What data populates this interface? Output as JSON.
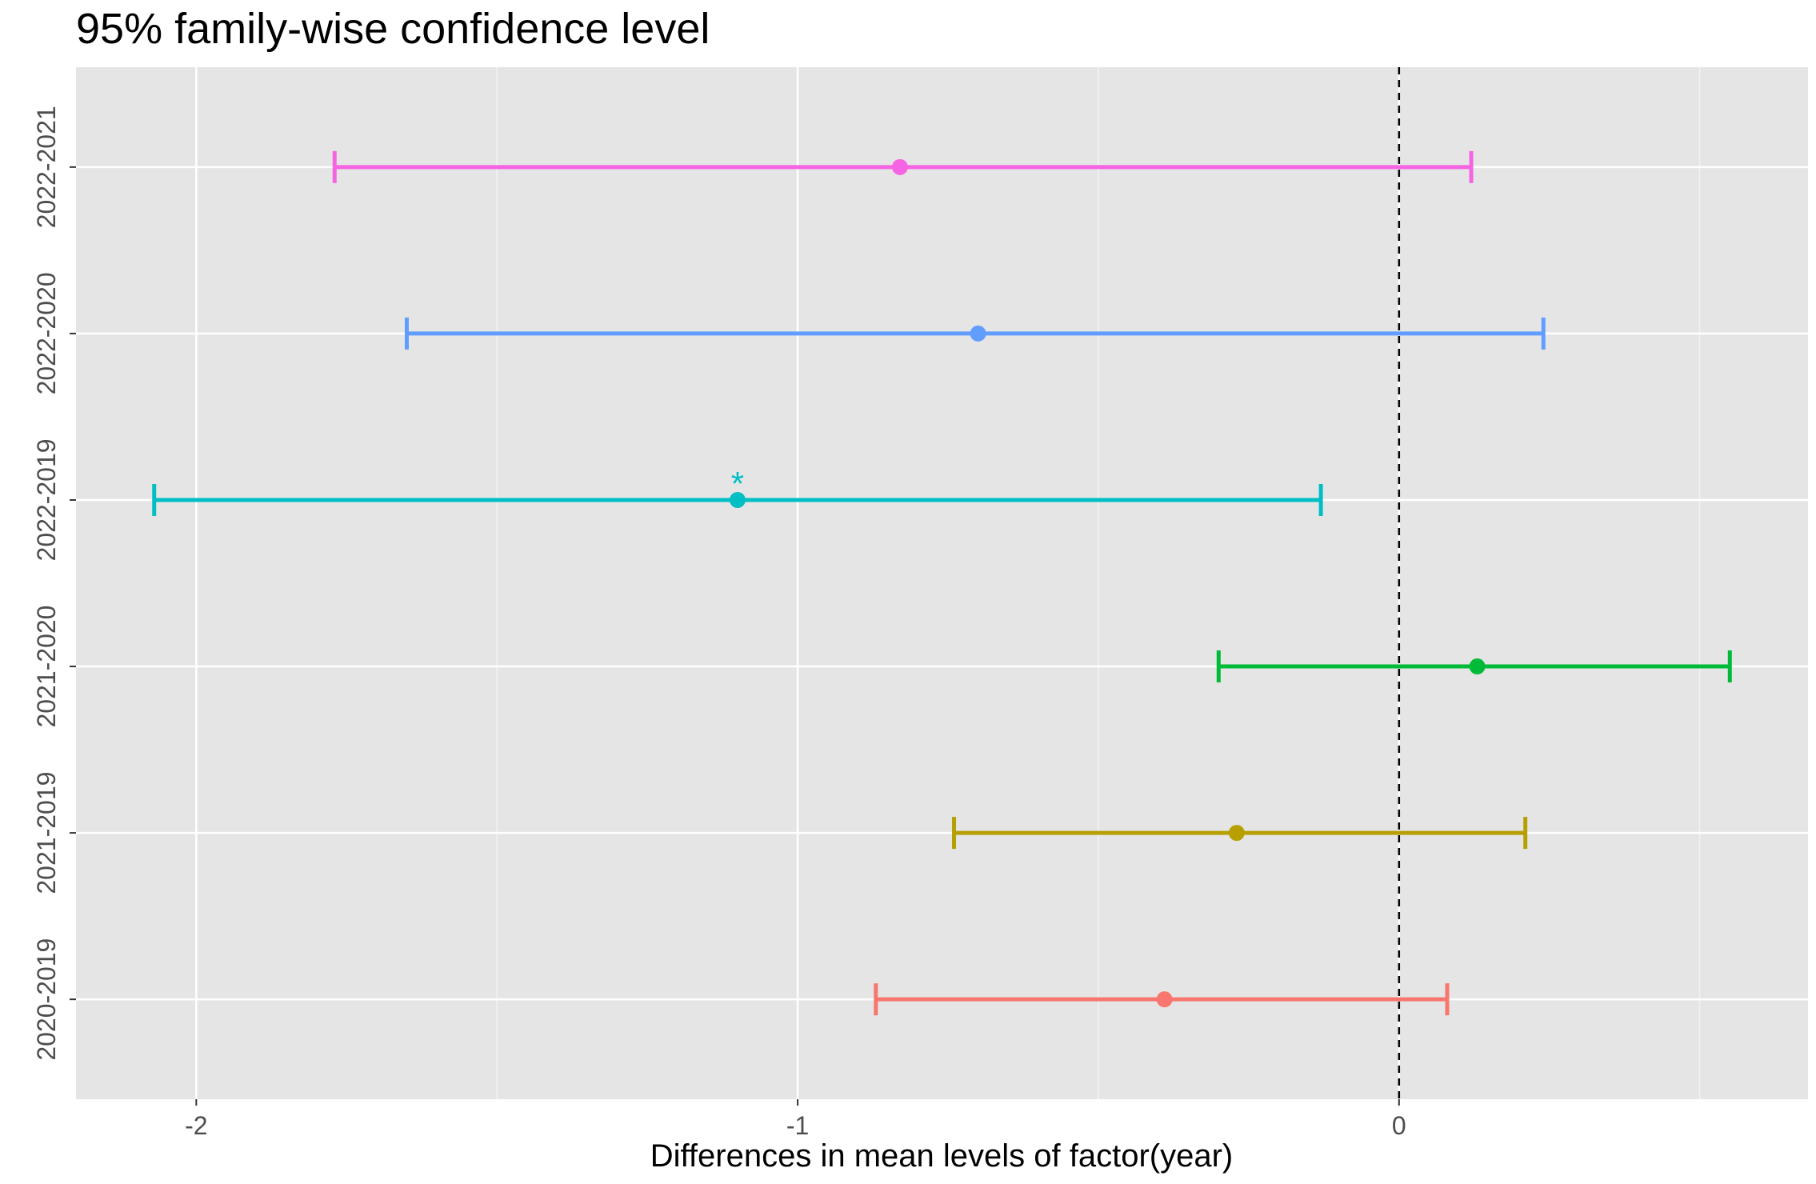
{
  "chart_data": {
    "type": "errorbar",
    "title": "95% family-wise confidence level",
    "xlabel": "Differences in mean levels of factor(year)",
    "ylabel": "",
    "xlim": [
      -2.2,
      0.68
    ],
    "x_ticks": [
      {
        "value": -2,
        "label": "-2"
      },
      {
        "value": -1,
        "label": "-1"
      },
      {
        "value": 0,
        "label": "0"
      }
    ],
    "reference_line": {
      "x": 0,
      "style": "dashed"
    },
    "grid": true,
    "comparisons": [
      {
        "label": "2020-2019",
        "estimate": -0.39,
        "lower": -0.87,
        "upper": 0.08,
        "color": "#F8766D",
        "annotation": ""
      },
      {
        "label": "2021-2019",
        "estimate": -0.27,
        "lower": -0.74,
        "upper": 0.21,
        "color": "#B79F00",
        "annotation": ""
      },
      {
        "label": "2021-2020",
        "estimate": 0.13,
        "lower": -0.3,
        "upper": 0.55,
        "color": "#00BA38",
        "annotation": ""
      },
      {
        "label": "2022-2019",
        "estimate": -1.1,
        "lower": -2.07,
        "upper": -0.13,
        "color": "#00BFC4",
        "annotation": "*"
      },
      {
        "label": "2022-2020",
        "estimate": -0.7,
        "lower": -1.65,
        "upper": 0.24,
        "color": "#619CFF",
        "annotation": ""
      },
      {
        "label": "2022-2021",
        "estimate": -0.83,
        "lower": -1.77,
        "upper": 0.12,
        "color": "#F564E3",
        "annotation": ""
      }
    ]
  }
}
